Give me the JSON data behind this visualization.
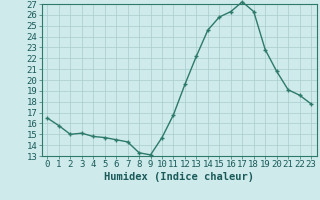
{
  "x": [
    0,
    1,
    2,
    3,
    4,
    5,
    6,
    7,
    8,
    9,
    10,
    11,
    12,
    13,
    14,
    15,
    16,
    17,
    18,
    19,
    20,
    21,
    22,
    23
  ],
  "y": [
    16.5,
    15.8,
    15.0,
    15.1,
    14.8,
    14.7,
    14.5,
    14.3,
    13.3,
    13.1,
    14.7,
    16.8,
    19.6,
    22.2,
    24.6,
    25.8,
    26.3,
    27.2,
    26.3,
    22.8,
    20.8,
    19.1,
    18.6,
    17.8
  ],
  "line_color": "#2d7a6a",
  "marker": "+",
  "bg_color": "#ceeaea",
  "grid_color": "#a8cccc",
  "xlabel": "Humidex (Indice chaleur)",
  "ylim": [
    13,
    27
  ],
  "xlim": [
    -0.5,
    23.5
  ],
  "yticks": [
    13,
    14,
    15,
    16,
    17,
    18,
    19,
    20,
    21,
    22,
    23,
    24,
    25,
    26,
    27
  ],
  "xticks": [
    0,
    1,
    2,
    3,
    4,
    5,
    6,
    7,
    8,
    9,
    10,
    11,
    12,
    13,
    14,
    15,
    16,
    17,
    18,
    19,
    20,
    21,
    22,
    23
  ],
  "tick_color": "#1a5a5a",
  "label_fontsize": 6.5,
  "xlabel_fontsize": 7.5,
  "axis_color": "#2d7a6a",
  "linewidth": 1.0,
  "markersize": 3.5
}
